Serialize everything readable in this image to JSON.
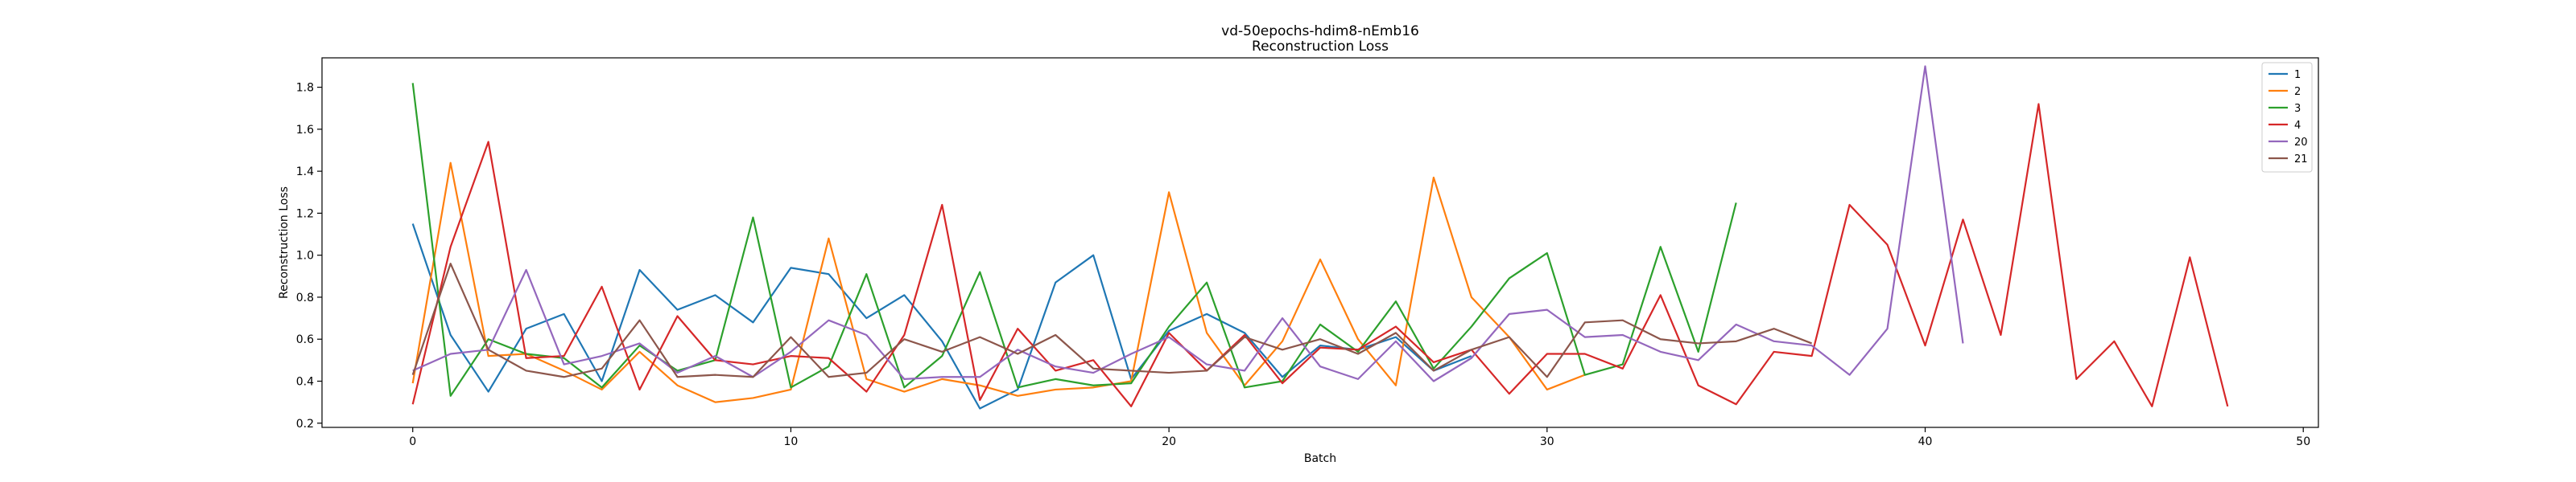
{
  "chart_data": {
    "type": "line",
    "title": "vd-50epochs-hdim8-nEmb16",
    "subtitle": "Reconstruction Loss",
    "xlabel": "Batch",
    "ylabel": "Reconstruction Loss",
    "xlim": [
      -2.4,
      50.4
    ],
    "ylim": [
      0.18,
      1.94
    ],
    "xticks": [
      0,
      10,
      20,
      30,
      40,
      50
    ],
    "yticks": [
      0.2,
      0.4,
      0.6,
      0.8,
      1.0,
      1.2,
      1.4,
      1.6,
      1.8
    ],
    "grid": false,
    "legend_position": "top-right",
    "series": [
      {
        "name": "1",
        "color": "#1f77b4",
        "x": [
          0,
          1,
          2,
          3,
          4,
          5,
          6,
          7,
          8,
          9,
          10,
          11,
          12,
          13,
          14,
          15,
          16,
          17,
          18,
          19,
          20,
          21,
          22,
          23,
          24,
          25,
          26,
          27,
          28
        ],
        "values": [
          1.15,
          0.62,
          0.35,
          0.65,
          0.72,
          0.4,
          0.93,
          0.74,
          0.81,
          0.68,
          0.94,
          0.91,
          0.7,
          0.81,
          0.59,
          0.27,
          0.36,
          0.87,
          1.0,
          0.41,
          0.64,
          0.72,
          0.63,
          0.42,
          0.57,
          0.55,
          0.61,
          0.45,
          0.52
        ]
      },
      {
        "name": "2",
        "color": "#ff7f0e",
        "x": [
          0,
          1,
          2,
          3,
          4,
          5,
          6,
          7,
          8,
          9,
          10,
          11,
          12,
          13,
          14,
          15,
          16,
          17,
          18,
          19,
          20,
          21,
          22,
          23,
          24,
          25,
          26,
          27,
          28,
          29,
          30,
          31
        ],
        "values": [
          0.39,
          1.44,
          0.52,
          0.53,
          0.45,
          0.36,
          0.54,
          0.38,
          0.3,
          0.32,
          0.36,
          1.08,
          0.41,
          0.35,
          0.41,
          0.38,
          0.33,
          0.36,
          0.37,
          0.4,
          1.3,
          0.63,
          0.38,
          0.59,
          0.98,
          0.6,
          0.38,
          1.37,
          0.8,
          0.61,
          0.36,
          0.43
        ]
      },
      {
        "name": "3",
        "color": "#2ca02c",
        "x": [
          0,
          1,
          2,
          3,
          4,
          5,
          6,
          7,
          8,
          9,
          10,
          11,
          12,
          13,
          14,
          15,
          16,
          17,
          18,
          19,
          20,
          21,
          22,
          23,
          24,
          25,
          26,
          27,
          28,
          29,
          30,
          31,
          32,
          33,
          34,
          35
        ],
        "values": [
          1.82,
          0.33,
          0.6,
          0.53,
          0.51,
          0.37,
          0.57,
          0.45,
          0.5,
          1.18,
          0.37,
          0.47,
          0.91,
          0.37,
          0.52,
          0.92,
          0.37,
          0.41,
          0.38,
          0.39,
          0.66,
          0.87,
          0.37,
          0.4,
          0.67,
          0.54,
          0.78,
          0.46,
          0.66,
          0.89,
          1.01,
          0.43,
          0.48,
          1.04,
          0.54,
          1.25
        ]
      },
      {
        "name": "4",
        "color": "#d62728",
        "x": [
          0,
          1,
          2,
          3,
          4,
          5,
          6,
          7,
          8,
          9,
          10,
          11,
          12,
          13,
          14,
          15,
          16,
          17,
          18,
          19,
          20,
          21,
          22,
          23,
          24,
          25,
          26,
          27,
          28,
          29,
          30,
          31,
          32,
          33,
          34,
          35,
          36,
          37,
          38,
          39,
          40,
          41,
          42,
          43,
          44,
          45,
          46,
          47,
          48
        ],
        "values": [
          0.29,
          1.04,
          1.54,
          0.51,
          0.52,
          0.85,
          0.36,
          0.71,
          0.5,
          0.48,
          0.52,
          0.51,
          0.35,
          0.62,
          1.24,
          0.31,
          0.65,
          0.45,
          0.5,
          0.28,
          0.63,
          0.45,
          0.62,
          0.39,
          0.56,
          0.55,
          0.66,
          0.49,
          0.55,
          0.34,
          0.53,
          0.53,
          0.46,
          0.81,
          0.38,
          0.29,
          0.54,
          0.52,
          1.24,
          1.05,
          0.57,
          1.17,
          0.62,
          1.72,
          0.41,
          0.59,
          0.28,
          0.99,
          0.28
        ]
      },
      {
        "name": "20",
        "color": "#9467bd",
        "x": [
          0,
          1,
          2,
          3,
          4,
          5,
          6,
          7,
          8,
          9,
          10,
          11,
          12,
          13,
          14,
          15,
          16,
          17,
          18,
          19,
          20,
          21,
          22,
          23,
          24,
          25,
          26,
          27,
          28,
          29,
          30,
          31,
          32,
          33,
          34,
          35,
          36,
          37,
          38,
          39,
          40,
          41
        ],
        "values": [
          0.45,
          0.53,
          0.55,
          0.93,
          0.48,
          0.52,
          0.58,
          0.44,
          0.52,
          0.42,
          0.54,
          0.69,
          0.62,
          0.41,
          0.42,
          0.42,
          0.55,
          0.47,
          0.44,
          0.53,
          0.61,
          0.48,
          0.45,
          0.7,
          0.47,
          0.41,
          0.59,
          0.4,
          0.51,
          0.72,
          0.74,
          0.61,
          0.62,
          0.54,
          0.5,
          0.67,
          0.59,
          0.57,
          0.43,
          0.65,
          1.9,
          0.58
        ]
      },
      {
        "name": "21",
        "color": "#8c564b",
        "x": [
          0,
          1,
          2,
          3,
          4,
          5,
          6,
          7,
          8,
          9,
          10,
          11,
          12,
          13,
          14,
          15,
          16,
          17,
          18,
          19,
          20,
          21,
          22,
          23,
          24,
          25,
          26,
          27,
          28,
          29,
          30,
          31,
          32,
          33,
          34,
          35,
          36,
          37
        ],
        "values": [
          0.43,
          0.96,
          0.55,
          0.45,
          0.42,
          0.46,
          0.69,
          0.42,
          0.43,
          0.42,
          0.61,
          0.42,
          0.44,
          0.6,
          0.54,
          0.61,
          0.53,
          0.62,
          0.46,
          0.45,
          0.44,
          0.45,
          0.61,
          0.55,
          0.6,
          0.53,
          0.63,
          0.45,
          0.55,
          0.61,
          0.42,
          0.68,
          0.69,
          0.6,
          0.58,
          0.59,
          0.65,
          0.58
        ]
      }
    ]
  }
}
